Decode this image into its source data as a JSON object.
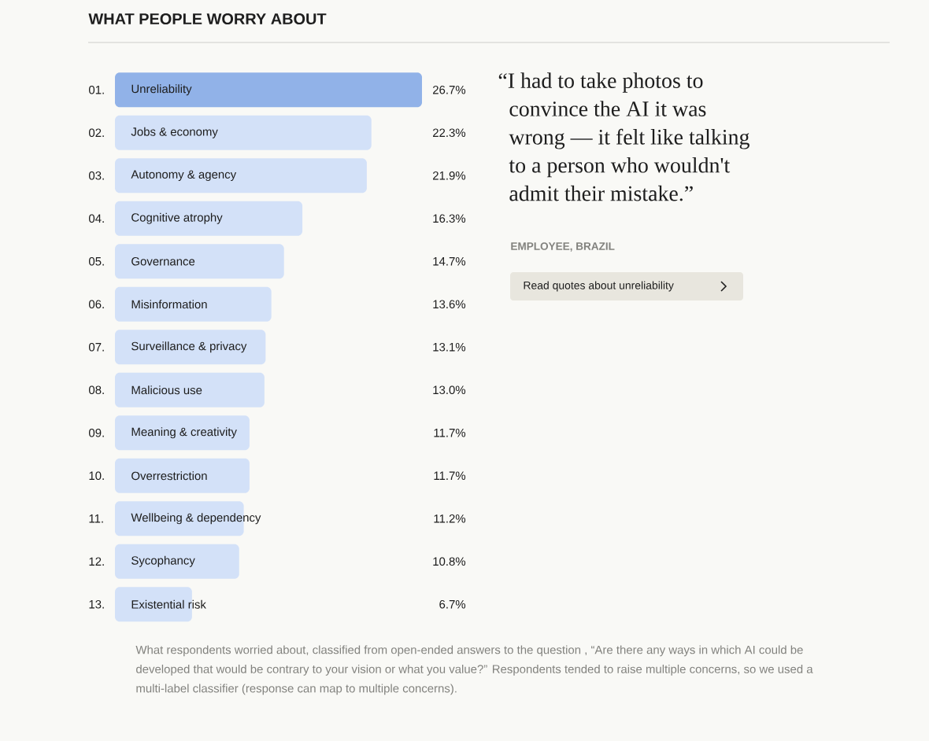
{
  "chart_data": {
    "type": "bar",
    "orientation": "horizontal",
    "title": "WHAT PEOPLE WORRY ABOUT",
    "categories": [
      "Unreliability",
      "Jobs & economy",
      "Autonomy & agency",
      "Cognitive atrophy",
      "Governance",
      "Misinformation",
      "Surveillance & privacy",
      "Malicious use",
      "Meaning & creativity",
      "Overrestriction",
      "Wellbeing & dependency",
      "Sycophancy",
      "Existential risk"
    ],
    "values": [
      26.7,
      22.3,
      21.9,
      16.3,
      14.7,
      13.6,
      13.1,
      13.0,
      11.7,
      11.7,
      11.2,
      10.8,
      6.7
    ],
    "value_labels": [
      "26.7%",
      "22.3%",
      "21.9%",
      "16.3%",
      "14.7%",
      "13.6%",
      "13.1%",
      "13.0%",
      "11.7%",
      "11.7%",
      "11.2%",
      "10.8%",
      "6.7%"
    ],
    "colors": [
      "#91b2e8",
      "#d3e1f8",
      "#d3e1f8",
      "#d3e1f8",
      "#d3e1f8",
      "#d3e1f8",
      "#d3e1f8",
      "#d3e1f8",
      "#d3e1f8",
      "#d3e1f8",
      "#d3e1f8",
      "#d3e1f8",
      "#d3e1f8"
    ],
    "annotations": [
      "“I had to take photos to convince the AI it was wrong — it felt like talking to a person who wouldn't admit their mistake.”",
      "EMPLOYEE, BRAZIL",
      "Read quotes about unreliability",
      "What respondents worried about, classified from open-ended answers to the question , “Are there any ways in which AI could be developed that would be contrary to your vision or what you value?” Respondents tended to raise multiple concerns, so we used a multi-label classifier (response can map to multiple concerns).",
      "01.",
      "02.",
      "03.",
      "04.",
      "05.",
      "06.",
      "07.",
      "08.",
      "09.",
      "10.",
      "11.",
      "12.",
      "13."
    ]
  }
}
